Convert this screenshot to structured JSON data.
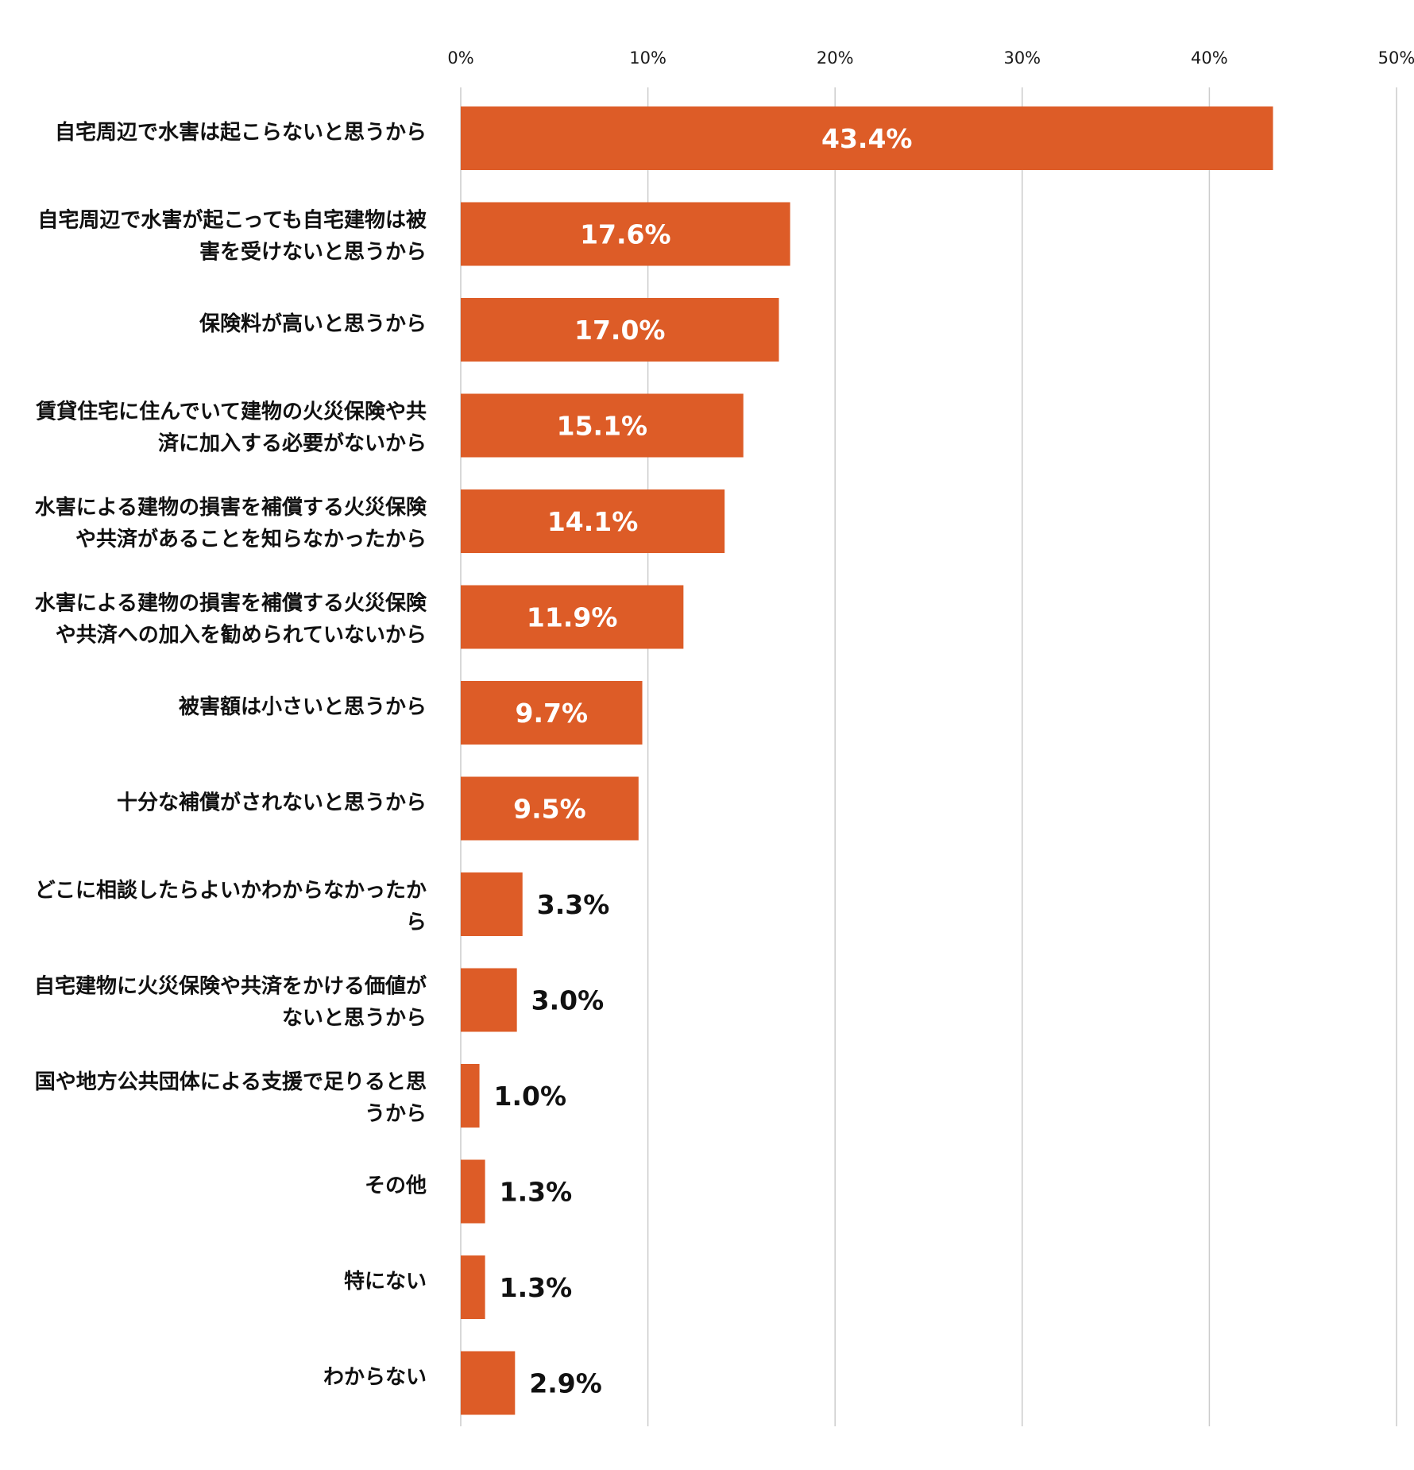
{
  "chart_data": {
    "type": "bar",
    "orientation": "horizontal",
    "title": "",
    "xlabel": "",
    "ylabel": "",
    "xlim": [
      0,
      50
    ],
    "ticks": [
      0,
      10,
      20,
      30,
      40,
      50
    ],
    "tick_labels": [
      "0%",
      "10%",
      "20%",
      "30%",
      "40%",
      "50%"
    ],
    "tick_position": "top",
    "grid": true,
    "legend": "none",
    "bar_color": "#DD5C27",
    "grid_color": "#CCCCCC",
    "categories": [
      [
        "自宅周辺で水害は起こらないと思うから"
      ],
      [
        "自宅周辺で水害が起こっても自宅建物は被",
        "害を受けないと思うから"
      ],
      [
        "保険料が高いと思うから"
      ],
      [
        "賃貸住宅に住んでいて建物の火災保険や共",
        "済に加入する必要がないから"
      ],
      [
        "水害による建物の損害を補償する火災保険",
        "や共済があることを知らなかったから"
      ],
      [
        "水害による建物の損害を補償する火災保険",
        "や共済への加入を勧められていないから"
      ],
      [
        "被害額は小さいと思うから"
      ],
      [
        "十分な補償がされないと思うから"
      ],
      [
        "どこに相談したらよいかわからなかったか",
        "ら"
      ],
      [
        "自宅建物に火災保険や共済をかける価値が",
        "ないと思うから"
      ],
      [
        "国や地方公共団体による支援で足りると思",
        "うから"
      ],
      [
        "その他"
      ],
      [
        "特にない"
      ],
      [
        "わからない"
      ]
    ],
    "values": [
      43.4,
      17.6,
      17.0,
      15.1,
      14.1,
      11.9,
      9.7,
      9.5,
      3.3,
      3.0,
      1.0,
      1.3,
      1.3,
      2.9
    ],
    "value_labels": [
      "43.4%",
      "17.6%",
      "17.0%",
      "15.1%",
      "14.1%",
      "11.9%",
      "9.7%",
      "9.5%",
      "3.3%",
      "3.0%",
      "1.0%",
      "1.3%",
      "1.3%",
      "2.9%"
    ]
  }
}
